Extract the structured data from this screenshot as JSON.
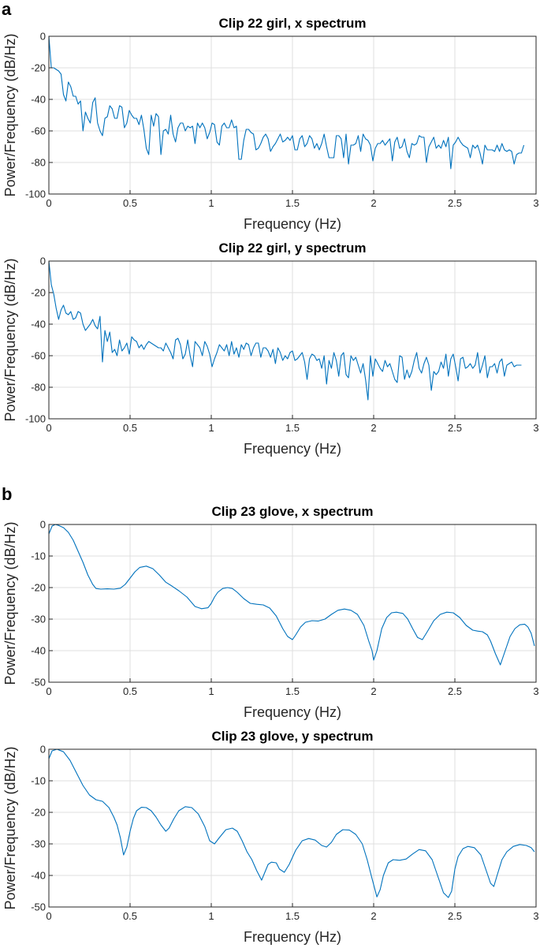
{
  "panel_labels": [
    "a",
    "b"
  ],
  "colors": {
    "series": "#0072BD",
    "grid": "#dfdfdf",
    "axis": "#262626"
  },
  "chart_data": [
    {
      "type": "line",
      "title": "Clip 22 girl, x spectrum",
      "xlabel": "Frequency (Hz)",
      "ylabel": "Power/Frequency (dB/Hz)",
      "xlim": [
        0,
        3
      ],
      "ylim": [
        -100,
        0
      ],
      "xticks": [
        0,
        0.5,
        1,
        1.5,
        2,
        2.5,
        3
      ],
      "xtick_labels": [
        "0",
        "0.5",
        "1",
        "1.5",
        "2",
        "2.5",
        "3"
      ],
      "yticks": [
        0,
        -20,
        -40,
        -60,
        -80,
        -100
      ],
      "ytick_labels": [
        "0",
        "-20",
        "-40",
        "-60",
        "-80",
        "-100"
      ],
      "grid": true,
      "series": [
        {
          "name": "x spectrum",
          "x_step": 0.015,
          "values": [
            0,
            -20,
            -20,
            -21,
            -22,
            -24,
            -37,
            -41,
            -29,
            -32,
            -38,
            -38,
            -43,
            -41,
            -60,
            -48,
            -52,
            -55,
            -42,
            -39,
            -55,
            -60,
            -63,
            -52,
            -51,
            -44,
            -46,
            -52,
            -52,
            -44,
            -45,
            -58,
            -55,
            -47,
            -50,
            -52,
            -52,
            -56,
            -50,
            -59,
            -71,
            -75,
            -50,
            -57,
            -49,
            -51,
            -75,
            -60,
            -59,
            -62,
            -50,
            -62,
            -67,
            -58,
            -55,
            -55,
            -60,
            -57,
            -58,
            -57,
            -68,
            -55,
            -58,
            -55,
            -58,
            -65,
            -61,
            -55,
            -56,
            -67,
            -69,
            -57,
            -55,
            -58,
            -58,
            -53,
            -58,
            -57,
            -78,
            -78,
            -66,
            -59,
            -59,
            -61,
            -62,
            -72,
            -71,
            -68,
            -64,
            -62,
            -65,
            -73,
            -70,
            -68,
            -65,
            -62,
            -67,
            -66,
            -64,
            -66,
            -63,
            -72,
            -72,
            -65,
            -63,
            -70,
            -68,
            -63,
            -65,
            -71,
            -68,
            -72,
            -68,
            -62,
            -70,
            -77,
            -77,
            -77,
            -63,
            -63,
            -65,
            -77,
            -62,
            -81,
            -69,
            -69,
            -68,
            -63,
            -73,
            -62,
            -65,
            -66,
            -69,
            -79,
            -71,
            -68,
            -68,
            -66,
            -69,
            -67,
            -65,
            -79,
            -67,
            -64,
            -71,
            -70,
            -65,
            -73,
            -77,
            -68,
            -69,
            -68,
            -63,
            -64,
            -64,
            -80,
            -70,
            -67,
            -64,
            -71,
            -69,
            -71,
            -66,
            -70,
            -64,
            -84,
            -69,
            -67,
            -64,
            -67,
            -69,
            -70,
            -71,
            -77,
            -69,
            -71,
            -69,
            -74,
            -81,
            -69,
            -72,
            -72,
            -72,
            -73,
            -69,
            -73,
            -68,
            -72,
            -73,
            -72,
            -73,
            -81,
            -75,
            -74,
            -74,
            -69
          ]
        }
      ]
    },
    {
      "type": "line",
      "title": "Clip 22 girl, y spectrum",
      "xlabel": "Frequency (Hz)",
      "ylabel": "Power/Frequency (dB/Hz)",
      "xlim": [
        0,
        3
      ],
      "ylim": [
        -100,
        0
      ],
      "xticks": [
        0,
        0.5,
        1,
        1.5,
        2,
        2.5,
        3
      ],
      "xtick_labels": [
        "0",
        "0.5",
        "1",
        "1.5",
        "2",
        "2.5",
        "3"
      ],
      "yticks": [
        0,
        -20,
        -40,
        -60,
        -80,
        -100
      ],
      "ytick_labels": [
        "0",
        "-20",
        "-40",
        "-60",
        "-80",
        "-100"
      ],
      "grid": true,
      "series": [
        {
          "name": "y spectrum",
          "x_step": 0.015,
          "values": [
            0,
            -15,
            -21,
            -30,
            -37,
            -31,
            -28,
            -33,
            -34,
            -32,
            -37,
            -36,
            -32,
            -33,
            -40,
            -44,
            -42,
            -40,
            -37,
            -41,
            -43,
            -35,
            -64,
            -44,
            -51,
            -45,
            -58,
            -56,
            -60,
            -50,
            -57,
            -55,
            -52,
            -59,
            -48,
            -50,
            -51,
            -55,
            -53,
            -56,
            -53,
            -51,
            -52,
            -53,
            -54,
            -55,
            -55,
            -57,
            -52,
            -55,
            -58,
            -62,
            -50,
            -49,
            -53,
            -62,
            -59,
            -50,
            -60,
            -67,
            -51,
            -53,
            -55,
            -60,
            -51,
            -54,
            -59,
            -67,
            -62,
            -58,
            -53,
            -55,
            -57,
            -53,
            -60,
            -51,
            -59,
            -55,
            -61,
            -53,
            -56,
            -52,
            -53,
            -60,
            -55,
            -52,
            -52,
            -61,
            -55,
            -55,
            -57,
            -61,
            -56,
            -65,
            -55,
            -58,
            -63,
            -60,
            -62,
            -58,
            -57,
            -63,
            -62,
            -60,
            -58,
            -64,
            -75,
            -62,
            -59,
            -60,
            -63,
            -62,
            -68,
            -60,
            -78,
            -63,
            -68,
            -58,
            -63,
            -73,
            -60,
            -58,
            -72,
            -74,
            -60,
            -63,
            -61,
            -66,
            -71,
            -65,
            -75,
            -88,
            -60,
            -73,
            -62,
            -65,
            -68,
            -70,
            -63,
            -67,
            -65,
            -70,
            -75,
            -77,
            -60,
            -61,
            -75,
            -69,
            -74,
            -70,
            -63,
            -58,
            -68,
            -71,
            -65,
            -61,
            -66,
            -82,
            -70,
            -72,
            -70,
            -64,
            -68,
            -59,
            -73,
            -62,
            -59,
            -67,
            -76,
            -62,
            -61,
            -68,
            -67,
            -65,
            -68,
            -66,
            -58,
            -71,
            -66,
            -60,
            -74,
            -67,
            -67,
            -65,
            -71,
            -64,
            -62,
            -73,
            -66,
            -65,
            -64,
            -67,
            -66,
            -66,
            -66
          ]
        }
      ]
    },
    {
      "type": "line",
      "title": "Clip 23 glove, x spectrum",
      "xlabel": "Frequency (Hz)",
      "ylabel": "Power/Frequency (dB/Hz)",
      "xlim": [
        0,
        3
      ],
      "ylim": [
        -50,
        0
      ],
      "xticks": [
        0,
        0.5,
        1,
        1.5,
        2,
        2.5,
        3
      ],
      "xtick_labels": [
        "0",
        "0.5",
        "1",
        "1.5",
        "2",
        "2.5",
        "3"
      ],
      "yticks": [
        0,
        -10,
        -20,
        -30,
        -40,
        -50
      ],
      "ytick_labels": [
        "0",
        "-10",
        "-20",
        "-30",
        "-40",
        "-50"
      ],
      "grid": true,
      "series": [
        {
          "name": "x spectrum",
          "x": [
            0,
            0.02,
            0.04,
            0.06,
            0.09,
            0.12,
            0.15,
            0.18,
            0.21,
            0.24,
            0.27,
            0.29,
            0.32,
            0.36,
            0.4,
            0.44,
            0.47,
            0.5,
            0.53,
            0.56,
            0.6,
            0.64,
            0.68,
            0.72,
            0.76,
            0.8,
            0.85,
            0.9,
            0.94,
            0.98,
            1.0,
            1.02,
            1.04,
            1.07,
            1.1,
            1.13,
            1.16,
            1.2,
            1.24,
            1.28,
            1.32,
            1.36,
            1.4,
            1.44,
            1.47,
            1.5,
            1.52,
            1.55,
            1.58,
            1.62,
            1.66,
            1.7,
            1.74,
            1.78,
            1.82,
            1.86,
            1.9,
            1.94,
            1.97,
            1.99,
            2.0,
            2.02,
            2.05,
            2.08,
            2.11,
            2.14,
            2.18,
            2.21,
            2.24,
            2.27,
            2.3,
            2.33,
            2.37,
            2.41,
            2.45,
            2.49,
            2.53,
            2.57,
            2.61,
            2.64,
            2.67,
            2.7,
            2.72,
            2.75,
            2.78,
            2.81,
            2.84,
            2.87,
            2.9,
            2.93,
            2.95,
            2.97,
            2.99
          ],
          "values": [
            -3,
            -0.5,
            0,
            -0.3,
            -1,
            -2.5,
            -5,
            -8.5,
            -12,
            -16,
            -19,
            -20.3,
            -20.5,
            -20.4,
            -20.5,
            -20.2,
            -19,
            -17,
            -15,
            -13.6,
            -13.2,
            -14,
            -16,
            -18.3,
            -19.6,
            -21,
            -23,
            -26,
            -26.7,
            -26.4,
            -25,
            -23,
            -21.5,
            -20.3,
            -20,
            -20.3,
            -21.5,
            -23.5,
            -25,
            -25.3,
            -25.5,
            -26.5,
            -29,
            -33,
            -35.5,
            -36.5,
            -35,
            -32.5,
            -31,
            -30.5,
            -30.6,
            -30,
            -28.5,
            -27.2,
            -26.8,
            -27.2,
            -28.5,
            -32,
            -37,
            -40,
            -43,
            -40,
            -33,
            -29.5,
            -28,
            -27.8,
            -28.2,
            -30,
            -33,
            -35.8,
            -36.5,
            -34,
            -30.5,
            -28.5,
            -27.8,
            -28,
            -29.5,
            -32,
            -33.5,
            -33.8,
            -34,
            -35,
            -37,
            -41,
            -44.5,
            -40,
            -35.5,
            -33,
            -31.8,
            -31.6,
            -32.5,
            -34.5,
            -38.5
          ]
        }
      ]
    },
    {
      "type": "line",
      "title": "Clip 23 glove, y spectrum",
      "xlabel": "Frequency (Hz)",
      "ylabel": "Power/Frequency (dB/Hz)",
      "xlim": [
        0,
        3
      ],
      "ylim": [
        -50,
        0
      ],
      "xticks": [
        0,
        0.5,
        1,
        1.5,
        2,
        2.5,
        3
      ],
      "xtick_labels": [
        "0",
        "0.5",
        "1",
        "1.5",
        "2",
        "2.5",
        "3"
      ],
      "yticks": [
        0,
        -10,
        -20,
        -30,
        -40,
        -50
      ],
      "ytick_labels": [
        "0",
        "-10",
        "-20",
        "-30",
        "-40",
        "-50"
      ],
      "grid": true,
      "series": [
        {
          "name": "y spectrum",
          "x": [
            0,
            0.02,
            0.05,
            0.09,
            0.13,
            0.17,
            0.21,
            0.25,
            0.29,
            0.33,
            0.37,
            0.4,
            0.42,
            0.44,
            0.46,
            0.48,
            0.5,
            0.52,
            0.54,
            0.57,
            0.6,
            0.63,
            0.66,
            0.69,
            0.72,
            0.74,
            0.77,
            0.8,
            0.84,
            0.88,
            0.92,
            0.96,
            0.99,
            1.02,
            1.05,
            1.09,
            1.13,
            1.16,
            1.19,
            1.22,
            1.25,
            1.28,
            1.31,
            1.33,
            1.35,
            1.37,
            1.4,
            1.42,
            1.45,
            1.48,
            1.52,
            1.56,
            1.6,
            1.64,
            1.68,
            1.71,
            1.74,
            1.77,
            1.81,
            1.85,
            1.89,
            1.93,
            1.96,
            1.99,
            2.02,
            2.04,
            2.06,
            2.09,
            2.12,
            2.16,
            2.2,
            2.24,
            2.28,
            2.32,
            2.36,
            2.4,
            2.43,
            2.46,
            2.48,
            2.5,
            2.52,
            2.55,
            2.58,
            2.62,
            2.66,
            2.69,
            2.72,
            2.74,
            2.76,
            2.79,
            2.82,
            2.86,
            2.9,
            2.94,
            2.97,
            2.99
          ],
          "values": [
            -3,
            -0.5,
            0,
            -0.8,
            -3.5,
            -7.5,
            -11.5,
            -14.5,
            -16,
            -16.5,
            -18.5,
            -21.5,
            -24,
            -28,
            -33.5,
            -31,
            -26,
            -22,
            -19.5,
            -18.4,
            -18.5,
            -19.5,
            -21.5,
            -24,
            -26,
            -25,
            -22,
            -19.5,
            -18.2,
            -18.5,
            -20.5,
            -24.5,
            -29,
            -30,
            -28,
            -25.5,
            -25,
            -26,
            -29,
            -32.5,
            -35,
            -38.5,
            -41.5,
            -39,
            -36.5,
            -35.8,
            -36,
            -38,
            -39,
            -36.5,
            -32,
            -29,
            -28.3,
            -28.8,
            -30.5,
            -31,
            -29.5,
            -27,
            -25.5,
            -25.6,
            -27,
            -30,
            -35,
            -41,
            -46.8,
            -44.5,
            -40,
            -36,
            -35,
            -35.2,
            -34.8,
            -33.2,
            -31.8,
            -32.2,
            -35,
            -41,
            -45.5,
            -47,
            -45,
            -38,
            -34,
            -31.5,
            -30.8,
            -31.2,
            -33.5,
            -38,
            -42.5,
            -43.5,
            -40,
            -35,
            -32.5,
            -30.8,
            -30.2,
            -30.5,
            -31.2,
            -32.5
          ]
        }
      ]
    }
  ]
}
